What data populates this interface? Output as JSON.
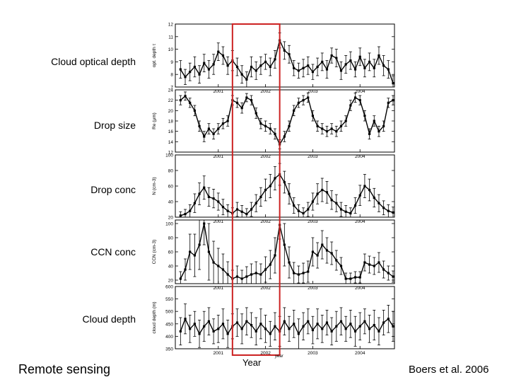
{
  "labels": {
    "panels": [
      "Cloud optical depth",
      "Drop size",
      "Drop conc",
      "CCN conc",
      "Cloud depth"
    ],
    "bottom_left": "Remote sensing",
    "citation": "Boers et al. 2006",
    "year_label": "Year",
    "year_axis_small": "year"
  },
  "colors": {
    "highlight": "#cc2222",
    "ink": "#000000"
  },
  "chart_data": {
    "type": "line",
    "title": "",
    "xlabel": "year",
    "x": [
      2000.2,
      2000.3,
      2000.4,
      2000.5,
      2000.6,
      2000.7,
      2000.8,
      2000.9,
      2001.0,
      2001.1,
      2001.2,
      2001.3,
      2001.4,
      2001.5,
      2001.6,
      2001.7,
      2001.8,
      2001.9,
      2002.0,
      2002.1,
      2002.2,
      2002.3,
      2002.4,
      2002.5,
      2002.6,
      2002.7,
      2002.8,
      2002.9,
      2003.0,
      2003.1,
      2003.2,
      2003.3,
      2003.4,
      2003.5,
      2003.6,
      2003.7,
      2003.8,
      2003.9,
      2004.0,
      2004.1,
      2004.2,
      2004.3,
      2004.4,
      2004.5,
      2004.6,
      2004.7
    ],
    "xlim": [
      2000.15,
      2004.7
    ],
    "year_ticks": [
      2001,
      2002,
      2003,
      2004
    ],
    "highlight_range": [
      2001.3,
      2002.3
    ],
    "panels": [
      {
        "name": "optical-depth",
        "ylabel": "opt. depth τ",
        "ylim": [
          7,
          12
        ],
        "yticks": [
          7,
          8,
          9,
          10,
          11,
          12
        ],
        "values": [
          8.4,
          7.8,
          8.2,
          8.6,
          8.0,
          8.9,
          8.4,
          8.8,
          9.8,
          9.5,
          8.7,
          9.1,
          8.6,
          8.0,
          7.6,
          8.6,
          8.3,
          8.7,
          9.0,
          8.6,
          9.2,
          10.7,
          9.9,
          9.6,
          8.5,
          8.3,
          8.5,
          8.7,
          8.2,
          8.6,
          9.0,
          8.4,
          9.5,
          9.3,
          8.3,
          8.8,
          9.1,
          8.4,
          9.4,
          8.5,
          9.0,
          8.5,
          9.5,
          8.7,
          8.4,
          7.3
        ],
        "errors": [
          0.7,
          0.6,
          0.7,
          0.8,
          0.7,
          0.7,
          0.7,
          0.8,
          0.7,
          0.7,
          0.7,
          0.8,
          0.7,
          0.7,
          0.6,
          0.8,
          0.7,
          0.7,
          0.6,
          0.7,
          0.7,
          0.6,
          0.7,
          0.7,
          0.6,
          0.6,
          0.7,
          0.7,
          0.6,
          0.7,
          0.7,
          0.7,
          0.6,
          0.7,
          0.7,
          0.7,
          0.7,
          0.6,
          0.7,
          0.7,
          0.7,
          0.7,
          0.7,
          0.8,
          0.7,
          0.6
        ]
      },
      {
        "name": "drop-size",
        "ylabel": "Re (μm)",
        "ylim": [
          12,
          24
        ],
        "yticks": [
          12,
          14,
          16,
          18,
          20,
          22,
          24
        ],
        "values": [
          22.0,
          22.8,
          21.5,
          20.0,
          17.0,
          15.0,
          16.5,
          15.5,
          16.5,
          17.5,
          18.0,
          22.0,
          21.5,
          20.5,
          22.5,
          22.0,
          19.5,
          17.5,
          17.0,
          16.5,
          15.5,
          13.5,
          15.0,
          17.0,
          20.0,
          21.5,
          22.0,
          22.5,
          19.0,
          17.0,
          16.5,
          16.0,
          16.5,
          16.0,
          17.0,
          18.0,
          21.0,
          22.5,
          22.0,
          19.0,
          15.5,
          18.0,
          16.0,
          17.0,
          21.5,
          22.0
        ],
        "errors": [
          0.9,
          0.8,
          0.9,
          1.0,
          1.0,
          1.0,
          1.0,
          1.0,
          1.0,
          1.0,
          1.0,
          0.9,
          0.9,
          1.0,
          0.8,
          0.9,
          1.0,
          1.0,
          1.0,
          1.0,
          1.0,
          0.9,
          1.0,
          1.0,
          1.0,
          0.9,
          0.9,
          0.9,
          1.0,
          1.0,
          1.0,
          1.0,
          1.0,
          1.0,
          1.0,
          1.0,
          1.0,
          0.9,
          0.9,
          1.0,
          1.0,
          1.0,
          1.0,
          1.0,
          0.9,
          0.9
        ]
      },
      {
        "name": "drop-conc",
        "ylabel": "N (cm-3)",
        "ylim": [
          20,
          100
        ],
        "yticks": [
          20,
          40,
          60,
          80,
          100
        ],
        "values": [
          22,
          24,
          28,
          38,
          50,
          58,
          46,
          44,
          40,
          33,
          28,
          25,
          30,
          27,
          24,
          30,
          38,
          46,
          55,
          60,
          70,
          75,
          65,
          50,
          35,
          28,
          25,
          30,
          40,
          50,
          55,
          52,
          42,
          38,
          30,
          27,
          25,
          35,
          48,
          60,
          55,
          45,
          38,
          32,
          28,
          26
        ],
        "errors": [
          5,
          6,
          8,
          12,
          14,
          15,
          12,
          12,
          11,
          10,
          8,
          7,
          9,
          8,
          7,
          9,
          11,
          12,
          14,
          15,
          15,
          14,
          14,
          13,
          10,
          8,
          7,
          9,
          11,
          13,
          15,
          14,
          12,
          11,
          9,
          8,
          7,
          10,
          13,
          15,
          14,
          12,
          11,
          9,
          8,
          7
        ]
      },
      {
        "name": "ccn-conc",
        "ylabel": "CCN (cm-3)",
        "ylim": [
          15,
          105
        ],
        "yticks": [
          20,
          40,
          60,
          80,
          100
        ],
        "values": [
          22,
          35,
          60,
          55,
          70,
          100,
          60,
          45,
          40,
          35,
          28,
          22,
          25,
          22,
          25,
          28,
          30,
          28,
          35,
          42,
          55,
          98,
          70,
          45,
          30,
          28,
          30,
          32,
          60,
          55,
          70,
          62,
          58,
          48,
          40,
          22,
          22,
          24,
          24,
          45,
          42,
          40,
          45,
          35,
          30,
          25
        ],
        "errors": [
          10,
          15,
          25,
          30,
          35,
          30,
          40,
          30,
          25,
          22,
          18,
          12,
          15,
          12,
          14,
          15,
          16,
          15,
          18,
          20,
          25,
          20,
          30,
          22,
          15,
          12,
          14,
          15,
          20,
          18,
          20,
          18,
          16,
          14,
          12,
          8,
          8,
          8,
          8,
          12,
          12,
          12,
          14,
          12,
          10,
          8
        ]
      },
      {
        "name": "cloud-depth",
        "ylabel": "cloud depth (m)",
        "ylim": [
          350,
          600
        ],
        "yticks": [
          350,
          400,
          450,
          500,
          550,
          600
        ],
        "values": [
          420,
          470,
          430,
          450,
          410,
          440,
          460,
          420,
          430,
          450,
          410,
          440,
          455,
          430,
          460,
          445,
          420,
          450,
          430,
          410,
          440,
          420,
          460,
          430,
          450,
          410,
          440,
          460,
          425,
          450,
          430,
          455,
          420,
          440,
          460,
          430,
          450,
          420,
          440,
          460,
          430,
          445,
          420,
          455,
          470,
          440
        ],
        "errors": [
          55,
          60,
          55,
          50,
          55,
          60,
          55,
          50,
          55,
          60,
          55,
          50,
          55,
          60,
          55,
          50,
          55,
          60,
          55,
          50,
          55,
          60,
          55,
          50,
          55,
          60,
          55,
          50,
          55,
          60,
          55,
          50,
          55,
          60,
          55,
          50,
          55,
          60,
          55,
          50,
          55,
          60,
          55,
          50,
          55,
          60
        ]
      }
    ]
  }
}
